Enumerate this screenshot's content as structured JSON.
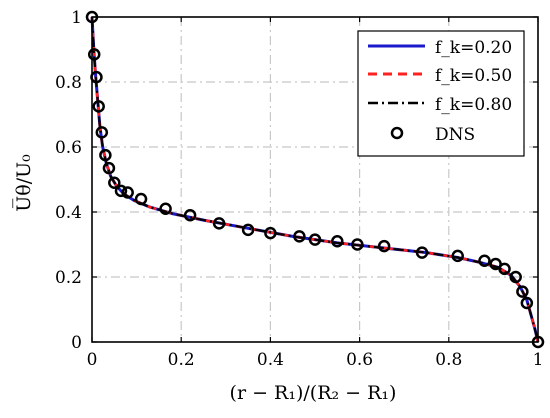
{
  "chart_data": {
    "type": "line",
    "xlabel": "(r − R₁)/(R₂ − R₁)",
    "ylabel": "U̅θ/U₀",
    "xlim": [
      0,
      1
    ],
    "ylim": [
      0,
      1
    ],
    "xticks": [
      "0",
      "0.2",
      "0.4",
      "0.6",
      "0.8",
      "1"
    ],
    "yticks": [
      "0",
      "0.2",
      "0.4",
      "0.6",
      "0.8",
      "1"
    ],
    "grid": true,
    "legend_position": "top-right",
    "series": [
      {
        "name": "f_k=0.20",
        "style": "solid",
        "color": "#1a1acc",
        "x": [
          0,
          0.004,
          0.008,
          0.013,
          0.018,
          0.024,
          0.032,
          0.042,
          0.055,
          0.072,
          0.095,
          0.13,
          0.18,
          0.25,
          0.35,
          0.45,
          0.55,
          0.65,
          0.75,
          0.82,
          0.87,
          0.91,
          0.94,
          0.96,
          0.975,
          0.985,
          0.993,
          1.0
        ],
        "y": [
          1.0,
          0.9,
          0.82,
          0.74,
          0.66,
          0.6,
          0.55,
          0.51,
          0.48,
          0.455,
          0.435,
          0.415,
          0.395,
          0.375,
          0.35,
          0.325,
          0.305,
          0.29,
          0.275,
          0.26,
          0.245,
          0.23,
          0.205,
          0.17,
          0.13,
          0.08,
          0.04,
          0.0
        ]
      },
      {
        "name": "f_k=0.50",
        "style": "dashed",
        "color": "#ff2020",
        "x": [
          0,
          0.004,
          0.008,
          0.013,
          0.018,
          0.024,
          0.032,
          0.042,
          0.055,
          0.072,
          0.095,
          0.13,
          0.18,
          0.25,
          0.35,
          0.45,
          0.55,
          0.65,
          0.75,
          0.82,
          0.87,
          0.91,
          0.94,
          0.96,
          0.975,
          0.985,
          0.993,
          1.0
        ],
        "y": [
          1.0,
          0.9,
          0.82,
          0.74,
          0.66,
          0.6,
          0.55,
          0.51,
          0.48,
          0.455,
          0.435,
          0.415,
          0.395,
          0.375,
          0.35,
          0.325,
          0.305,
          0.29,
          0.275,
          0.26,
          0.245,
          0.23,
          0.205,
          0.17,
          0.13,
          0.08,
          0.04,
          0.0
        ]
      },
      {
        "name": "f_k=0.80",
        "style": "dashdot",
        "color": "#000000",
        "x": [
          0,
          0.004,
          0.008,
          0.013,
          0.018,
          0.024,
          0.032,
          0.042,
          0.055,
          0.072,
          0.095,
          0.13,
          0.18,
          0.25,
          0.35,
          0.45,
          0.55,
          0.65,
          0.75,
          0.82,
          0.87,
          0.91,
          0.94,
          0.96,
          0.975,
          0.985,
          0.993,
          1.0
        ],
        "y": [
          1.0,
          0.9,
          0.82,
          0.74,
          0.66,
          0.6,
          0.55,
          0.51,
          0.48,
          0.455,
          0.435,
          0.415,
          0.395,
          0.375,
          0.35,
          0.325,
          0.305,
          0.29,
          0.275,
          0.26,
          0.245,
          0.23,
          0.205,
          0.17,
          0.13,
          0.08,
          0.04,
          0.0
        ]
      },
      {
        "name": "DNS",
        "style": "markers",
        "color": "#000000",
        "x": [
          0.0,
          0.005,
          0.01,
          0.015,
          0.022,
          0.03,
          0.038,
          0.05,
          0.065,
          0.08,
          0.11,
          0.165,
          0.22,
          0.285,
          0.35,
          0.4,
          0.465,
          0.5,
          0.55,
          0.595,
          0.655,
          0.74,
          0.82,
          0.88,
          0.905,
          0.925,
          0.95,
          0.965,
          0.975,
          1.0
        ],
        "y": [
          1.0,
          0.885,
          0.815,
          0.725,
          0.645,
          0.575,
          0.535,
          0.49,
          0.465,
          0.46,
          0.44,
          0.41,
          0.39,
          0.365,
          0.345,
          0.335,
          0.325,
          0.315,
          0.31,
          0.3,
          0.295,
          0.275,
          0.265,
          0.25,
          0.24,
          0.225,
          0.2,
          0.155,
          0.12,
          0.0
        ]
      }
    ]
  }
}
